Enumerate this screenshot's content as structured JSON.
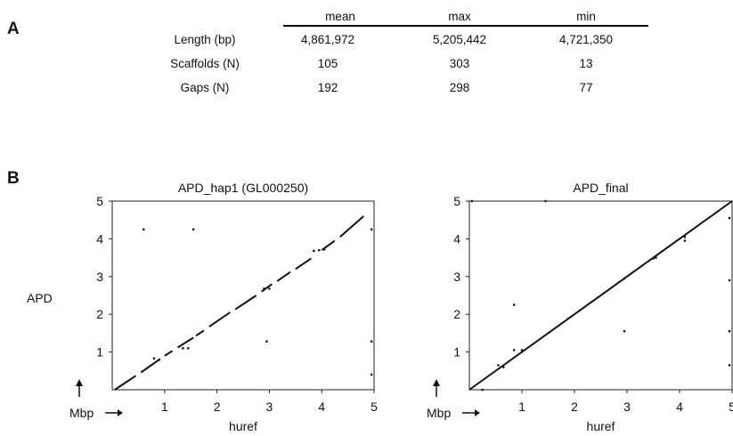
{
  "panel_a": {
    "label": "A",
    "columns": [
      "mean",
      "max",
      "min"
    ],
    "rows": [
      {
        "label": "Length (bp)",
        "values": [
          "4,861,972",
          "5,205,442",
          "4,721,350"
        ]
      },
      {
        "label": "Scaffolds (N)",
        "values": [
          "105",
          "303",
          "13"
        ]
      },
      {
        "label": "Gaps (N)",
        "values": [
          "192",
          "298",
          "77"
        ]
      }
    ]
  },
  "panel_b": {
    "label": "B",
    "ylabel": "APD",
    "unit_label": "Mbp"
  },
  "chart_data": [
    {
      "type": "scatter",
      "title": "APD_hap1 (GL000250)",
      "xlabel": "huref",
      "ylabel": "APD",
      "xlim": [
        0,
        5
      ],
      "ylim": [
        0,
        5
      ],
      "x_ticks": [
        "1",
        "2",
        "3",
        "4",
        "5"
      ],
      "y_ticks": [
        "1",
        "2",
        "3",
        "4",
        "5"
      ],
      "diagonal_segments": [
        [
          [
            0.05,
            0.0
          ],
          [
            0.45,
            0.37
          ]
        ],
        [
          [
            0.55,
            0.46
          ],
          [
            0.9,
            0.8
          ]
        ],
        [
          [
            1.0,
            0.9
          ],
          [
            1.15,
            1.03
          ]
        ],
        [
          [
            1.25,
            1.12
          ],
          [
            1.55,
            1.38
          ]
        ],
        [
          [
            1.6,
            1.43
          ],
          [
            1.75,
            1.57
          ]
        ],
        [
          [
            1.85,
            1.67
          ],
          [
            2.25,
            2.05
          ]
        ],
        [
          [
            2.35,
            2.13
          ],
          [
            2.75,
            2.5
          ]
        ],
        [
          [
            2.85,
            2.6
          ],
          [
            3.05,
            2.8
          ]
        ],
        [
          [
            3.15,
            2.88
          ],
          [
            3.4,
            3.12
          ]
        ],
        [
          [
            3.5,
            3.2
          ],
          [
            3.8,
            3.48
          ]
        ],
        [
          [
            4.0,
            3.7
          ],
          [
            4.25,
            3.95
          ]
        ],
        [
          [
            4.35,
            4.05
          ],
          [
            4.8,
            4.6
          ]
        ]
      ],
      "points": [
        [
          0.6,
          4.25
        ],
        [
          1.55,
          4.25
        ],
        [
          2.95,
          1.28
        ],
        [
          0.8,
          0.83
        ],
        [
          0.9,
          0.8
        ],
        [
          1.35,
          1.1
        ],
        [
          1.45,
          1.1
        ],
        [
          2.9,
          2.68
        ],
        [
          3.0,
          2.68
        ],
        [
          3.85,
          3.68
        ],
        [
          3.95,
          3.7
        ],
        [
          4.05,
          3.72
        ],
        [
          4.95,
          4.25
        ],
        [
          4.95,
          1.28
        ],
        [
          4.95,
          0.4
        ]
      ]
    },
    {
      "type": "scatter",
      "title": "APD_final",
      "xlabel": "huref",
      "ylabel": "",
      "xlim": [
        0,
        5
      ],
      "ylim": [
        0,
        5
      ],
      "x_ticks": [
        "1",
        "2",
        "3",
        "4",
        "5"
      ],
      "y_ticks": [
        "1",
        "2",
        "3",
        "4",
        "5"
      ],
      "diagonal_segments": [
        [
          [
            0.0,
            0.0
          ],
          [
            5.0,
            5.0
          ]
        ]
      ],
      "points": [
        [
          1.45,
          5.0
        ],
        [
          0.05,
          5.0
        ],
        [
          0.85,
          2.25
        ],
        [
          0.85,
          1.05
        ],
        [
          1.0,
          1.05
        ],
        [
          0.55,
          0.65
        ],
        [
          0.65,
          0.6
        ],
        [
          2.95,
          2.95
        ],
        [
          2.95,
          1.55
        ],
        [
          3.5,
          3.48
        ],
        [
          3.55,
          3.5
        ],
        [
          4.1,
          3.95
        ],
        [
          4.1,
          4.05
        ],
        [
          4.95,
          4.55
        ],
        [
          4.95,
          2.9
        ],
        [
          4.95,
          1.55
        ],
        [
          4.95,
          0.65
        ],
        [
          0.25,
          0.0
        ]
      ]
    }
  ]
}
